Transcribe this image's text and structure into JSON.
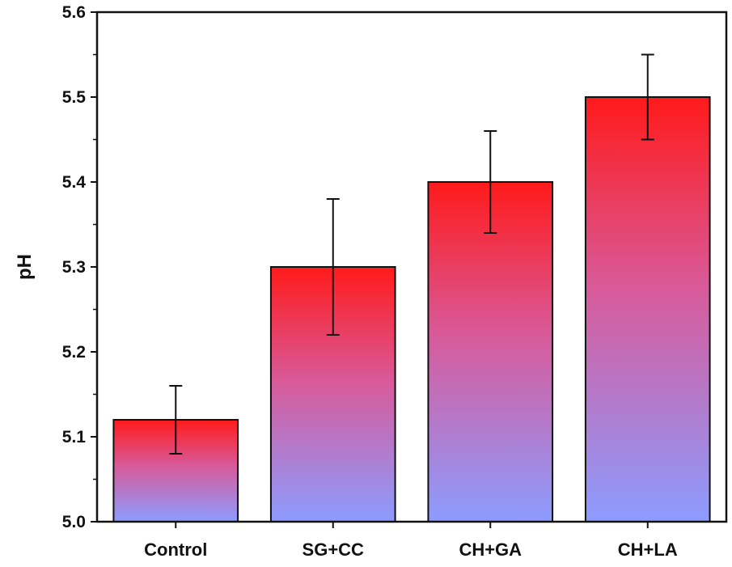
{
  "chart_data": {
    "type": "bar",
    "title": "",
    "xlabel": "",
    "ylabel": "pH",
    "ylim": [
      5.0,
      5.6
    ],
    "yticks": [
      "5.0",
      "5.1",
      "5.2",
      "5.3",
      "5.4",
      "5.5",
      "5.6"
    ],
    "categories": [
      "Control",
      "SG+CC",
      "CH+GA",
      "CH+LA"
    ],
    "values": [
      5.12,
      5.3,
      5.4,
      5.5
    ],
    "errors": [
      0.04,
      0.08,
      0.06,
      0.05
    ],
    "grid": false,
    "colors": {
      "bar_top": "#ff1a1a",
      "bar_mid": "#d85a9a",
      "bar_bottom": "#8c9cff",
      "axis": "#111111"
    }
  }
}
